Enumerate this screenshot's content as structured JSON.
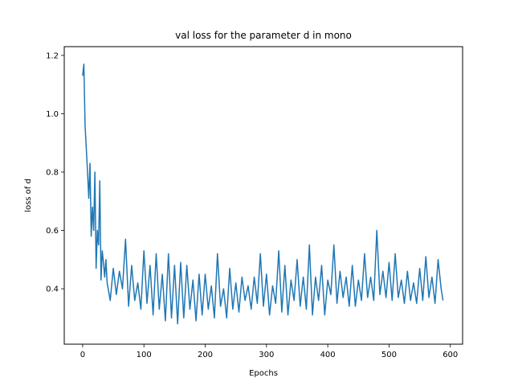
{
  "chart_data": {
    "type": "line",
    "title": "val loss for the parameter d in mono",
    "xlabel": "Epochs",
    "ylabel": "loss of d",
    "xlim": [
      -30,
      620
    ],
    "ylim": [
      0.21,
      1.23
    ],
    "xticks": [
      0,
      100,
      200,
      300,
      400,
      500,
      600
    ],
    "yticks": [
      0.4,
      0.6,
      0.8,
      1.0,
      1.2
    ],
    "xtick_labels": [
      "0",
      "100",
      "200",
      "300",
      "400",
      "500",
      "600"
    ],
    "ytick_labels": [
      "0.4",
      "0.6",
      "0.8",
      "1.0",
      "1.2"
    ],
    "grid": false,
    "series": [
      {
        "color": "#1f77b4",
        "x": [
          0,
          2,
          4,
          6,
          8,
          10,
          12,
          14,
          16,
          18,
          20,
          22,
          24,
          26,
          28,
          30,
          32,
          34,
          36,
          38,
          40,
          45,
          50,
          55,
          60,
          65,
          70,
          75,
          80,
          85,
          90,
          95,
          100,
          105,
          110,
          115,
          120,
          125,
          130,
          135,
          140,
          145,
          150,
          155,
          160,
          165,
          170,
          175,
          180,
          185,
          190,
          195,
          200,
          205,
          210,
          215,
          220,
          225,
          230,
          235,
          240,
          245,
          250,
          255,
          260,
          265,
          270,
          275,
          280,
          285,
          290,
          295,
          300,
          305,
          310,
          315,
          320,
          325,
          330,
          335,
          340,
          345,
          350,
          355,
          360,
          365,
          370,
          375,
          380,
          385,
          390,
          395,
          400,
          405,
          410,
          415,
          420,
          425,
          430,
          435,
          440,
          445,
          450,
          455,
          460,
          465,
          470,
          475,
          480,
          485,
          490,
          495,
          500,
          505,
          510,
          515,
          520,
          525,
          530,
          535,
          540,
          545,
          550,
          555,
          560,
          565,
          570,
          575,
          580,
          585,
          588
        ],
        "y": [
          1.13,
          1.17,
          0.96,
          0.88,
          0.8,
          0.71,
          0.83,
          0.58,
          0.68,
          0.6,
          0.8,
          0.47,
          0.6,
          0.55,
          0.77,
          0.43,
          0.53,
          0.49,
          0.44,
          0.5,
          0.42,
          0.36,
          0.47,
          0.38,
          0.46,
          0.4,
          0.57,
          0.34,
          0.48,
          0.36,
          0.42,
          0.33,
          0.53,
          0.35,
          0.48,
          0.31,
          0.52,
          0.33,
          0.45,
          0.29,
          0.52,
          0.3,
          0.48,
          0.28,
          0.49,
          0.3,
          0.48,
          0.33,
          0.43,
          0.29,
          0.45,
          0.31,
          0.45,
          0.33,
          0.41,
          0.3,
          0.52,
          0.34,
          0.4,
          0.3,
          0.47,
          0.33,
          0.42,
          0.32,
          0.44,
          0.36,
          0.41,
          0.33,
          0.44,
          0.35,
          0.52,
          0.34,
          0.45,
          0.31,
          0.41,
          0.35,
          0.53,
          0.32,
          0.48,
          0.31,
          0.43,
          0.36,
          0.5,
          0.34,
          0.44,
          0.33,
          0.55,
          0.31,
          0.44,
          0.36,
          0.48,
          0.31,
          0.43,
          0.38,
          0.55,
          0.35,
          0.46,
          0.37,
          0.44,
          0.34,
          0.48,
          0.34,
          0.43,
          0.36,
          0.52,
          0.37,
          0.44,
          0.36,
          0.6,
          0.38,
          0.46,
          0.37,
          0.49,
          0.36,
          0.52,
          0.37,
          0.43,
          0.35,
          0.46,
          0.36,
          0.42,
          0.35,
          0.47,
          0.36,
          0.51,
          0.37,
          0.44,
          0.35,
          0.5,
          0.4,
          0.36
        ]
      }
    ]
  }
}
